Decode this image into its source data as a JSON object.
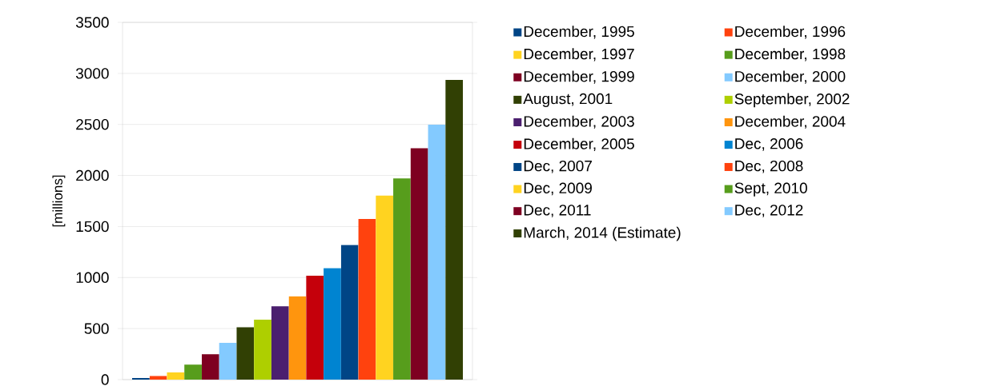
{
  "chart_data": {
    "type": "bar",
    "ylabel": "[millions]",
    "categories": [
      null
    ],
    "ylim": [
      0,
      3500
    ],
    "yticks": [
      0,
      500,
      1000,
      1500,
      2000,
      2500,
      3000,
      3500
    ],
    "grid": "y",
    "legend": "right",
    "series": [
      {
        "name": "December, 1995",
        "color": "#004586",
        "values": [
          16
        ]
      },
      {
        "name": "December, 1996",
        "color": "#ff420e",
        "values": [
          36
        ]
      },
      {
        "name": "December, 1997",
        "color": "#ffd320",
        "values": [
          70
        ]
      },
      {
        "name": "December, 1998",
        "color": "#579d1c",
        "values": [
          147
        ]
      },
      {
        "name": "December, 1999",
        "color": "#7e0021",
        "values": [
          248
        ]
      },
      {
        "name": "December, 2000",
        "color": "#83caff",
        "values": [
          361
        ]
      },
      {
        "name": "August, 2001",
        "color": "#314004",
        "values": [
          513
        ]
      },
      {
        "name": "September, 2002",
        "color": "#aecf00",
        "values": [
          587
        ]
      },
      {
        "name": "December, 2003",
        "color": "#4b1f6f",
        "values": [
          719
        ]
      },
      {
        "name": "December, 2004",
        "color": "#ff950e",
        "values": [
          817
        ]
      },
      {
        "name": "December, 2005",
        "color": "#c5000b",
        "values": [
          1018
        ]
      },
      {
        "name": "Dec, 2006",
        "color": "#0084d1",
        "values": [
          1093
        ]
      },
      {
        "name": "Dec, 2007",
        "color": "#004586",
        "values": [
          1319
        ]
      },
      {
        "name": "Dec, 2008",
        "color": "#ff420e",
        "values": [
          1574
        ]
      },
      {
        "name": "Dec, 2009",
        "color": "#ffd320",
        "values": [
          1802
        ]
      },
      {
        "name": "Sept, 2010",
        "color": "#579d1c",
        "values": [
          1971
        ]
      },
      {
        "name": "Dec, 2011",
        "color": "#7e0021",
        "values": [
          2267
        ]
      },
      {
        "name": "Dec, 2012",
        "color": "#83caff",
        "values": [
          2497
        ]
      },
      {
        "name": "March, 2014 (Estimate)",
        "color": "#314004",
        "values": [
          2937
        ]
      }
    ]
  }
}
